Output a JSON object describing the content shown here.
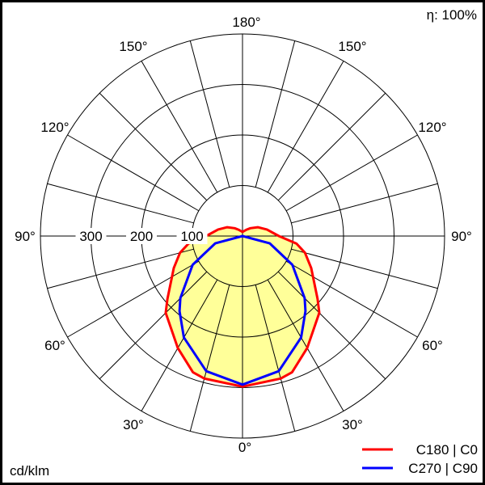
{
  "chart_data": {
    "type": "polar",
    "unit_label": "cd/klm",
    "efficiency_label": "η: 100%",
    "radial_ticks": [
      100,
      200,
      300
    ],
    "radial_max": 400,
    "radial_rings": [
      100,
      200,
      300,
      400
    ],
    "angle_step": 15,
    "angle_labels": {
      "top": "180°",
      "upper": "150°",
      "upper_mid": "120°",
      "side": "90°",
      "lower_mid": "60°",
      "lower": "30°",
      "bottom": "0°"
    },
    "fill_color": "#ffff99",
    "series": [
      {
        "name": "C180 | C0",
        "color": "#ff0000",
        "angles": [
          0,
          15,
          20,
          30,
          45,
          50,
          65,
          75,
          82,
          90,
          105,
          120,
          135,
          150,
          165,
          180
        ],
        "values": [
          298,
          292,
          287,
          256,
          215,
          194,
          150,
          128,
          108,
          72,
          50,
          35,
          22,
          14,
          10,
          8
        ]
      },
      {
        "name": "C270 | C90",
        "color": "#0000ff",
        "angles": [
          0,
          15,
          30,
          40,
          45,
          60,
          75,
          90
        ],
        "values": [
          294,
          277,
          232,
          194,
          174,
          114,
          56,
          0
        ]
      }
    ],
    "grid": true,
    "legend_position": "bottom-right"
  }
}
